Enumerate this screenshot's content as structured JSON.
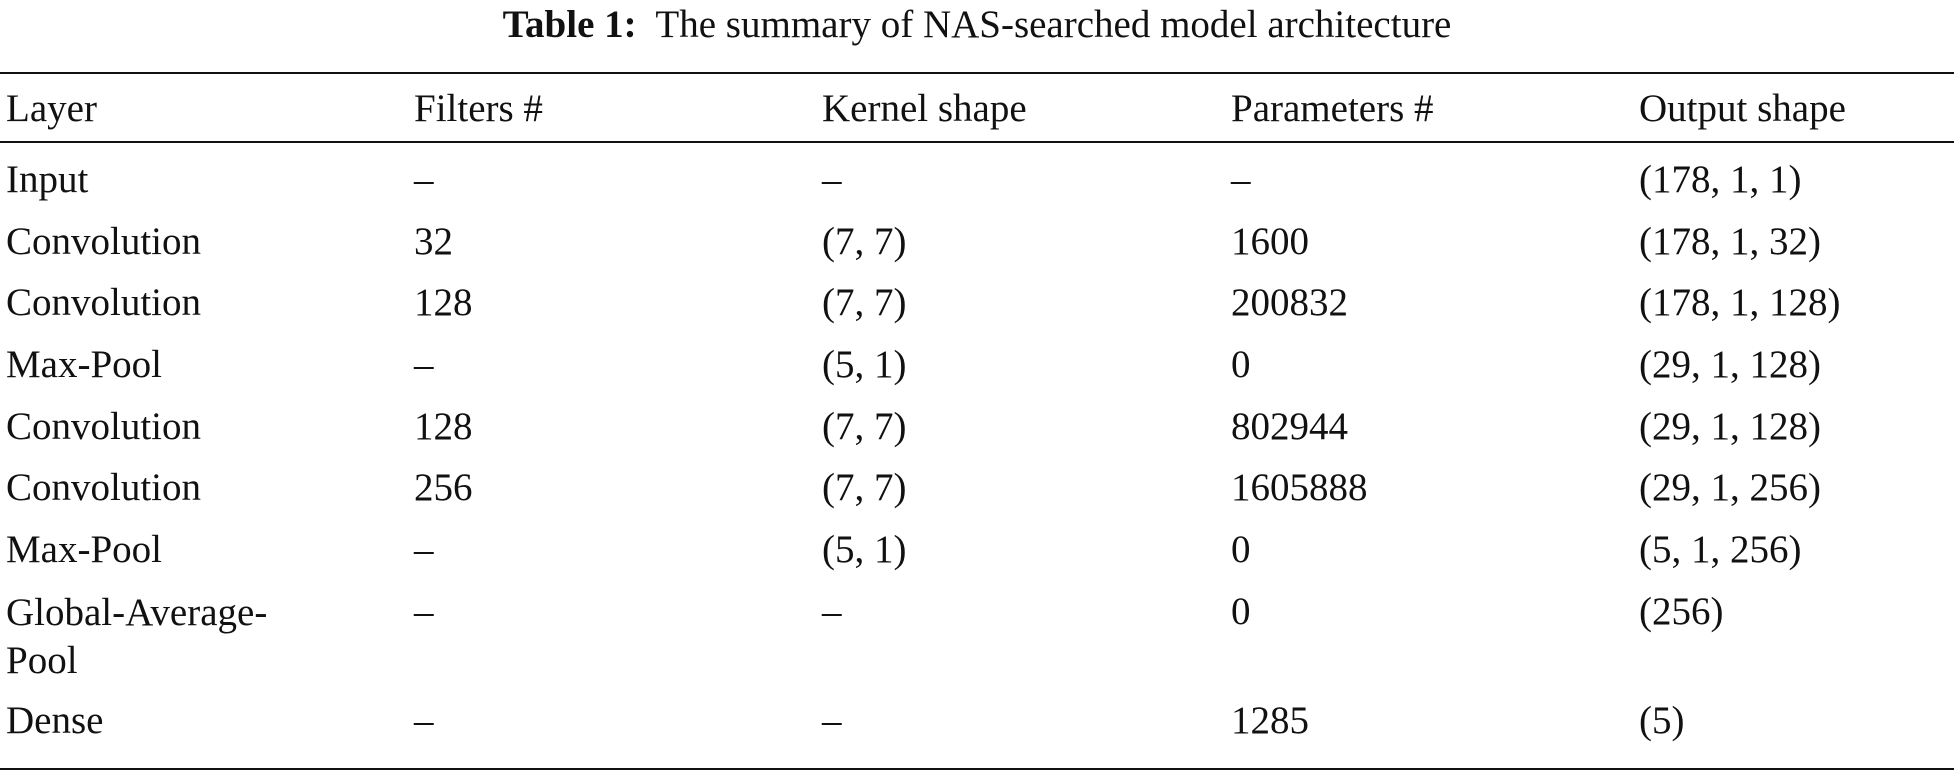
{
  "caption": {
    "label": "Table 1:",
    "text": "The summary of NAS-searched model architecture"
  },
  "table": {
    "headers": [
      "Layer",
      "Filters #",
      "Kernel shape",
      "Parameters #",
      "Output shape"
    ],
    "rows": [
      [
        "Input",
        "–",
        "–",
        "–",
        "(178, 1, 1)"
      ],
      [
        "Convolution",
        "32",
        "(7, 7)",
        "1600",
        "(178, 1, 32)"
      ],
      [
        "Convolution",
        "128",
        "(7, 7)",
        "200832",
        "(178, 1, 128)"
      ],
      [
        "Max-Pool",
        "–",
        "(5, 1)",
        "0",
        "(29, 1, 128)"
      ],
      [
        "Convolution",
        "128",
        "(7, 7)",
        "802944",
        "(29, 1, 128)"
      ],
      [
        "Convolution",
        "256",
        "(7, 7)",
        "1605888",
        "(29, 1, 256)"
      ],
      [
        "Max-Pool",
        "–",
        "(5, 1)",
        "0",
        "(5, 1, 256)"
      ],
      [
        "Global-Average-Pool",
        "–",
        "–",
        "0",
        "(256)"
      ],
      [
        "Dense",
        "–",
        "–",
        "1285",
        "(5)"
      ]
    ]
  }
}
